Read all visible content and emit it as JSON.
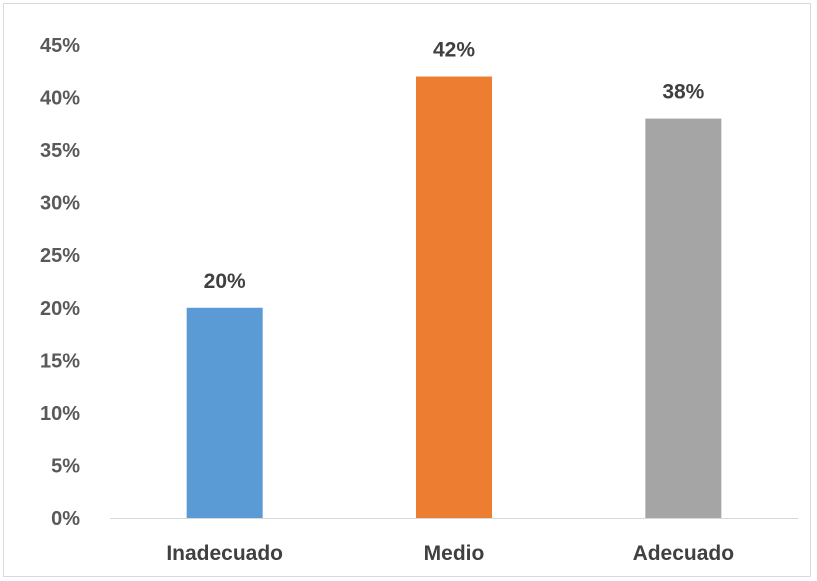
{
  "chart_data": {
    "type": "bar",
    "title": "",
    "xlabel": "",
    "ylabel": "",
    "categories": [
      "Inadecuado",
      "Medio",
      "Adecuado"
    ],
    "values": [
      20,
      42,
      38
    ],
    "data_labels": [
      "20%",
      "42%",
      "38%"
    ],
    "bar_colors": [
      "#5b9bd5",
      "#ed7d31",
      "#a5a5a5"
    ],
    "ylim": [
      0,
      45
    ],
    "yticks": [
      0,
      5,
      10,
      15,
      20,
      25,
      30,
      35,
      40,
      45
    ],
    "ytick_labels": [
      "0%",
      "5%",
      "10%",
      "15%",
      "20%",
      "25%",
      "30%",
      "35%",
      "40%",
      "45%"
    ],
    "grid": false,
    "legend": "none"
  }
}
